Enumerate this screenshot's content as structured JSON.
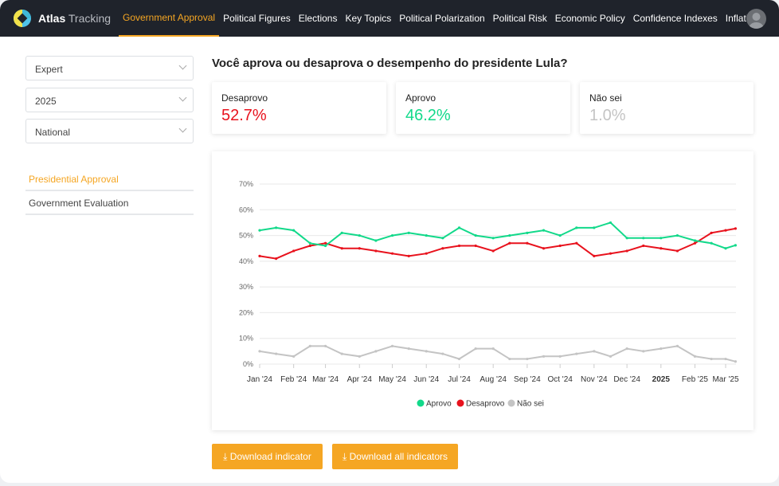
{
  "header": {
    "brand_bold": "Atlas",
    "brand_light": "Tracking",
    "tabs": [
      "Government Approval",
      "Political Figures",
      "Elections",
      "Key Topics",
      "Political Polarization",
      "Political Risk",
      "Economic Policy",
      "Confidence Indexes",
      "Inflation"
    ],
    "active_tab": "Government Approval"
  },
  "sidebar": {
    "selects": [
      "Expert",
      "2025",
      "National"
    ],
    "links": [
      "Presidential Approval",
      "Government Evaluation"
    ],
    "active_link": "Presidential Approval"
  },
  "main": {
    "question": "Você aprova ou desaprova o desempenho do presidente Lula?",
    "cards": [
      {
        "label": "Desaprovo",
        "value": "52.7%",
        "color": "#e8121d"
      },
      {
        "label": "Aprovo",
        "value": "46.2%",
        "color": "#12d98a"
      },
      {
        "label": "Não sei",
        "value": "1.0%",
        "color": "#c4c4c4"
      }
    ],
    "buttons": {
      "download_one": "Download indicator",
      "download_all": "Download all indicators"
    }
  },
  "chart_data": {
    "type": "line",
    "ylim": [
      0,
      70
    ],
    "yticks": [
      "0%",
      "10%",
      "20%",
      "30%",
      "40%",
      "50%",
      "60%",
      "70%"
    ],
    "xticks": [
      "Jan '24",
      "Feb '24",
      "Mar '24",
      "Apr '24",
      "May '24",
      "Jun '24",
      "Jul '24",
      "Aug '24",
      "Sep '24",
      "Oct '24",
      "Nov '24",
      "Dec '24",
      "2025",
      "Feb '25",
      "Mar '25"
    ],
    "grid": true,
    "legend": "bottom",
    "x": [
      "2024-01-01",
      "2024-01-16",
      "2024-02-01",
      "2024-02-16",
      "2024-03-01",
      "2024-03-16",
      "2024-04-01",
      "2024-04-16",
      "2024-05-01",
      "2024-05-16",
      "2024-06-01",
      "2024-06-16",
      "2024-07-01",
      "2024-07-16",
      "2024-08-01",
      "2024-08-16",
      "2024-09-01",
      "2024-09-16",
      "2024-10-01",
      "2024-10-16",
      "2024-11-01",
      "2024-11-16",
      "2024-12-01",
      "2024-12-16",
      "2025-01-01",
      "2025-01-16",
      "2025-02-01",
      "2025-02-16",
      "2025-03-01",
      "2025-03-10"
    ],
    "series": [
      {
        "name": "Aprovo",
        "color": "#12d98a",
        "values": [
          52,
          53,
          52,
          47,
          46,
          51,
          50,
          48,
          50,
          51,
          50,
          49,
          53,
          50,
          49,
          50,
          51,
          52,
          50,
          53,
          53,
          55,
          49,
          49,
          49,
          50,
          48,
          47,
          45,
          46.2
        ]
      },
      {
        "name": "Desaprovo",
        "color": "#e8121d",
        "values": [
          42,
          41,
          44,
          46,
          47,
          45,
          45,
          44,
          43,
          42,
          43,
          45,
          46,
          46,
          44,
          47,
          47,
          45,
          46,
          47,
          42,
          43,
          44,
          46,
          45,
          44,
          47,
          51,
          52,
          52.7
        ]
      },
      {
        "name": "Não sei",
        "color": "#c4c4c4",
        "values": [
          5,
          4,
          3,
          7,
          7,
          4,
          3,
          5,
          7,
          6,
          5,
          4,
          2,
          6,
          6,
          2,
          2,
          3,
          3,
          4,
          5,
          3,
          6,
          5,
          6,
          7,
          3,
          2,
          2,
          1
        ]
      }
    ]
  }
}
